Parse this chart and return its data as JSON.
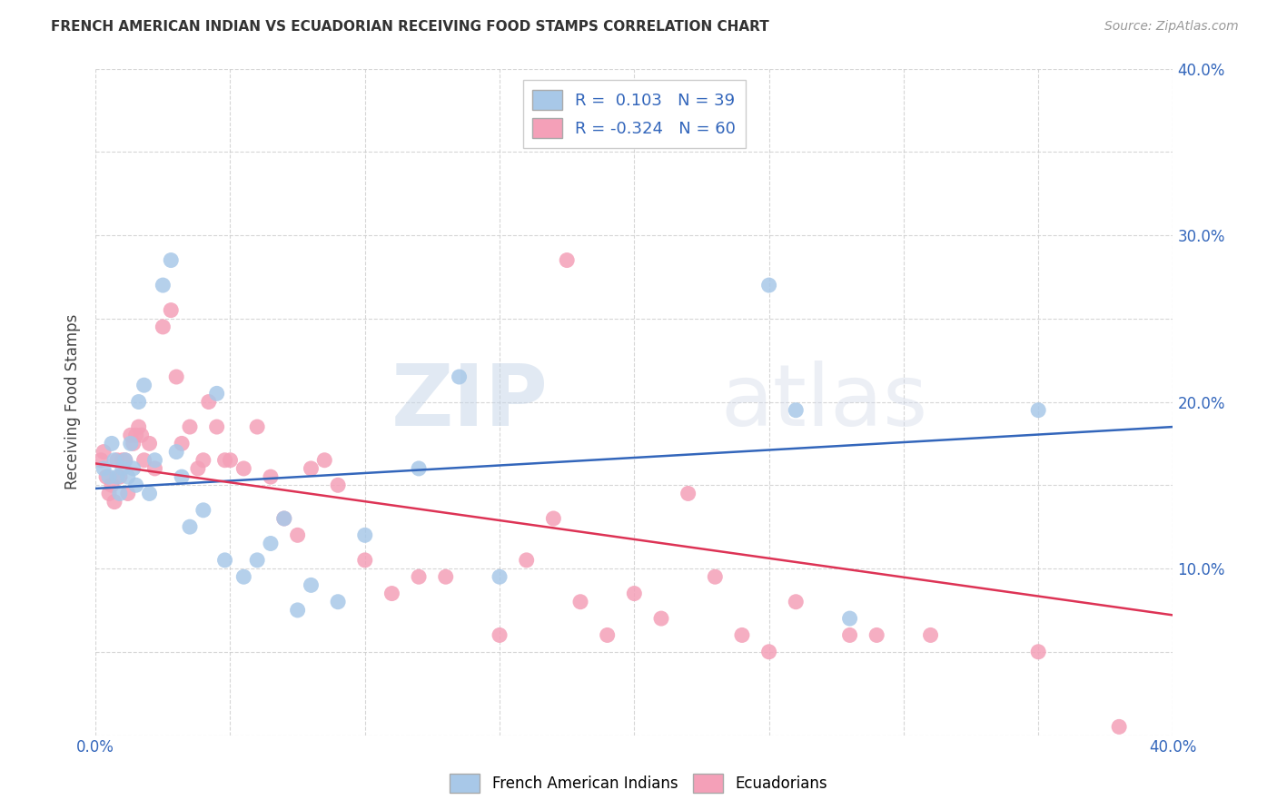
{
  "title": "FRENCH AMERICAN INDIAN VS ECUADORIAN RECEIVING FOOD STAMPS CORRELATION CHART",
  "source": "Source: ZipAtlas.com",
  "ylabel": "Receiving Food Stamps",
  "xlim": [
    0.0,
    0.4
  ],
  "ylim": [
    0.0,
    0.4
  ],
  "blue_R": 0.103,
  "blue_N": 39,
  "pink_R": -0.324,
  "pink_N": 60,
  "blue_color": "#a8c8e8",
  "pink_color": "#f4a0b8",
  "blue_line_color": "#3366bb",
  "pink_line_color": "#dd3355",
  "legend_label_blue": "French American Indians",
  "legend_label_pink": "Ecuadorians",
  "watermark_zip": "ZIP",
  "watermark_atlas": "atlas",
  "background_color": "#ffffff",
  "grid_color": "#cccccc",
  "blue_line_x0": 0.0,
  "blue_line_y0": 0.148,
  "blue_line_x1": 0.4,
  "blue_line_y1": 0.185,
  "pink_line_x0": 0.0,
  "pink_line_y0": 0.163,
  "pink_line_x1": 0.4,
  "pink_line_y1": 0.072,
  "blue_x": [
    0.003,
    0.005,
    0.006,
    0.007,
    0.008,
    0.009,
    0.01,
    0.011,
    0.012,
    0.013,
    0.014,
    0.015,
    0.016,
    0.018,
    0.02,
    0.022,
    0.025,
    0.028,
    0.03,
    0.032,
    0.035,
    0.04,
    0.045,
    0.048,
    0.055,
    0.06,
    0.065,
    0.07,
    0.075,
    0.08,
    0.09,
    0.1,
    0.12,
    0.135,
    0.15,
    0.25,
    0.26,
    0.28,
    0.35
  ],
  "blue_y": [
    0.16,
    0.155,
    0.175,
    0.165,
    0.155,
    0.145,
    0.16,
    0.165,
    0.155,
    0.175,
    0.16,
    0.15,
    0.2,
    0.21,
    0.145,
    0.165,
    0.27,
    0.285,
    0.17,
    0.155,
    0.125,
    0.135,
    0.205,
    0.105,
    0.095,
    0.105,
    0.115,
    0.13,
    0.075,
    0.09,
    0.08,
    0.12,
    0.16,
    0.215,
    0.095,
    0.27,
    0.195,
    0.07,
    0.195
  ],
  "pink_x": [
    0.002,
    0.003,
    0.004,
    0.005,
    0.006,
    0.007,
    0.008,
    0.009,
    0.01,
    0.011,
    0.012,
    0.013,
    0.014,
    0.015,
    0.016,
    0.017,
    0.018,
    0.02,
    0.022,
    0.025,
    0.028,
    0.03,
    0.032,
    0.035,
    0.038,
    0.04,
    0.042,
    0.045,
    0.048,
    0.05,
    0.055,
    0.06,
    0.065,
    0.07,
    0.075,
    0.08,
    0.085,
    0.09,
    0.1,
    0.11,
    0.12,
    0.13,
    0.15,
    0.16,
    0.17,
    0.175,
    0.18,
    0.19,
    0.2,
    0.21,
    0.22,
    0.23,
    0.24,
    0.25,
    0.26,
    0.28,
    0.29,
    0.31,
    0.35,
    0.38
  ],
  "pink_y": [
    0.165,
    0.17,
    0.155,
    0.145,
    0.15,
    0.14,
    0.165,
    0.155,
    0.165,
    0.165,
    0.145,
    0.18,
    0.175,
    0.18,
    0.185,
    0.18,
    0.165,
    0.175,
    0.16,
    0.245,
    0.255,
    0.215,
    0.175,
    0.185,
    0.16,
    0.165,
    0.2,
    0.185,
    0.165,
    0.165,
    0.16,
    0.185,
    0.155,
    0.13,
    0.12,
    0.16,
    0.165,
    0.15,
    0.105,
    0.085,
    0.095,
    0.095,
    0.06,
    0.105,
    0.13,
    0.285,
    0.08,
    0.06,
    0.085,
    0.07,
    0.145,
    0.095,
    0.06,
    0.05,
    0.08,
    0.06,
    0.06,
    0.06,
    0.05,
    0.005
  ]
}
